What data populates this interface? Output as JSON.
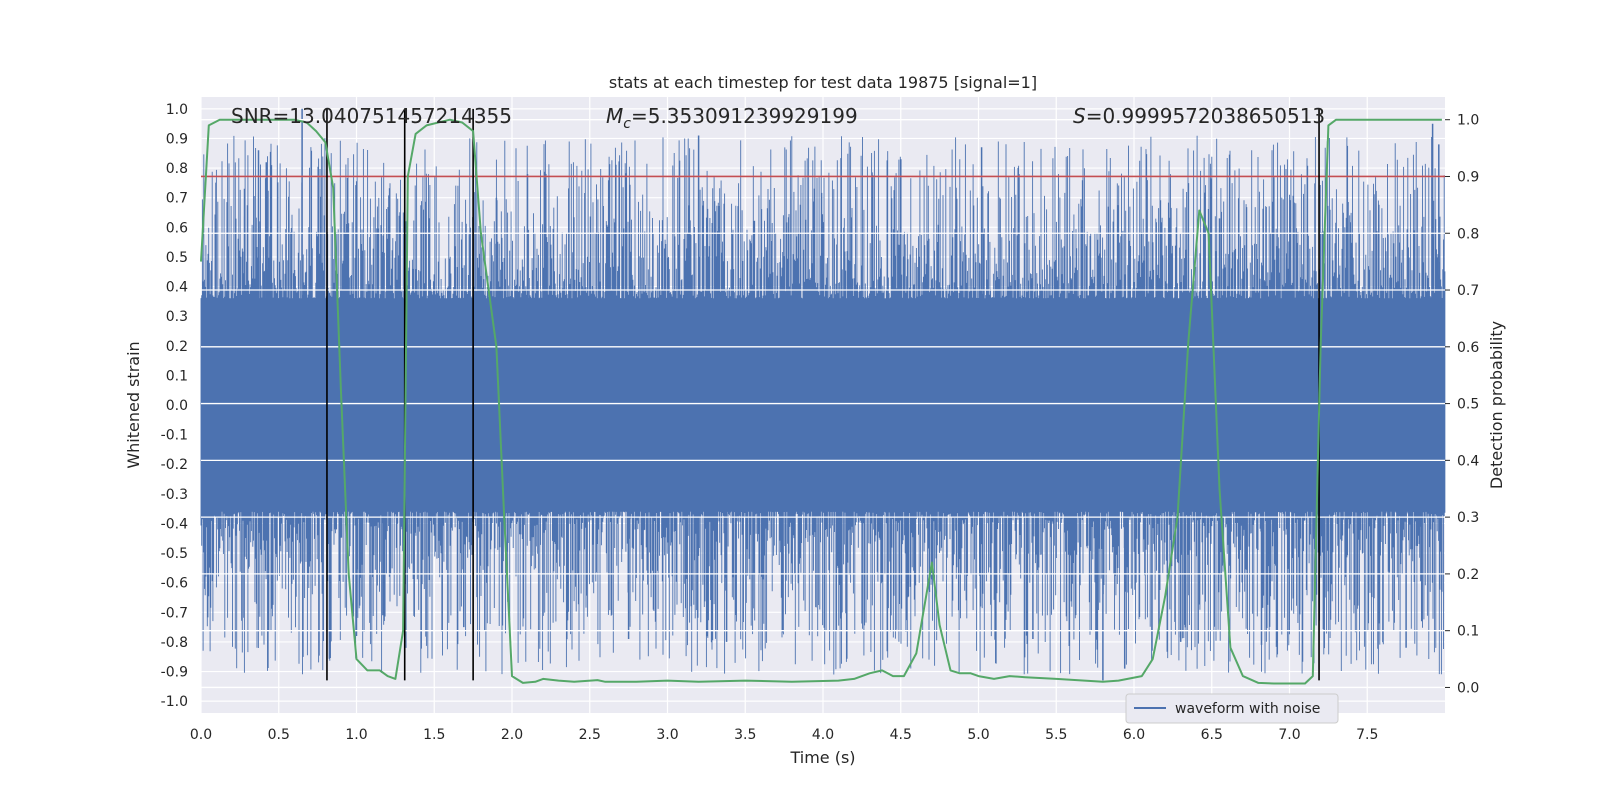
{
  "chart_data": {
    "type": "line",
    "title": "stats at each timestep for test data 19875 [signal=1]",
    "xlabel": "Time (s)",
    "ylabel_left": "Whitened strain",
    "ylabel_right": "Detection probability",
    "xlim": [
      0.0,
      8.0
    ],
    "ylim_left": [
      -1.04,
      1.04
    ],
    "ylim_right": [
      -0.045,
      1.04
    ],
    "x_ticks": [
      "0.0",
      "0.5",
      "1.0",
      "1.5",
      "2.0",
      "2.5",
      "3.0",
      "3.5",
      "4.0",
      "4.5",
      "5.0",
      "5.5",
      "6.0",
      "6.5",
      "7.0",
      "7.5"
    ],
    "y_left_ticks": [
      "1.0",
      "0.9",
      "0.8",
      "0.7",
      "0.6",
      "0.5",
      "0.4",
      "0.3",
      "0.2",
      "0.1",
      "0.0",
      "-0.1",
      "-0.2",
      "-0.3",
      "-0.4",
      "-0.5",
      "-0.6",
      "-0.7",
      "-0.8",
      "-0.9",
      "-1.0"
    ],
    "y_right_ticks": [
      "1.0",
      "0.9",
      "0.8",
      "0.7",
      "0.6",
      "0.5",
      "0.4",
      "0.3",
      "0.2",
      "0.1",
      "0.0"
    ],
    "annotations": {
      "snr": "SNR=13.040751457214355",
      "mc_symbol": "M",
      "mc_sub": "c",
      "mc_value": "=5.353091239929199",
      "s_symbol": "S",
      "s_value": "=0.9999572038650513"
    },
    "threshold": {
      "value": 0.9,
      "axis": "right",
      "color": "#c44e52"
    },
    "event_lines": [
      0.81,
      1.31,
      1.75,
      7.19
    ],
    "event_line_range": [
      -0.93,
      1.0
    ],
    "series": [
      {
        "name": "waveform with noise",
        "axis": "left",
        "color": "#4c72b0",
        "kind": "noise",
        "core_amplitude": 0.36,
        "envelope_p": [
          [
            0.0,
            0.0,
            0.6
          ],
          [
            8.0,
            0.0,
            0.6
          ]
        ],
        "spikes": [
          [
            0.28,
            0.73
          ],
          [
            0.37,
            0.86
          ],
          [
            0.42,
            0.82
          ],
          [
            0.65,
            1.0
          ],
          [
            0.87,
            -0.42
          ],
          [
            1.0,
            -0.78
          ],
          [
            1.17,
            -0.71
          ],
          [
            1.69,
            -0.75
          ],
          [
            1.9,
            0.7
          ],
          [
            2.1,
            0.78
          ],
          [
            2.75,
            -0.79
          ],
          [
            3.2,
            0.91
          ],
          [
            3.38,
            -0.8
          ],
          [
            4.5,
            0.83
          ],
          [
            5.02,
            0.87
          ],
          [
            5.35,
            -0.79
          ],
          [
            5.8,
            -0.93
          ],
          [
            5.94,
            -0.89
          ],
          [
            6.3,
            -0.8
          ],
          [
            6.55,
            0.63
          ],
          [
            6.82,
            -0.81
          ],
          [
            7.75,
            -0.82
          ],
          [
            7.85,
            -0.73
          ],
          [
            7.92,
            0.95
          ],
          [
            7.96,
            0.88
          ]
        ]
      },
      {
        "name": "Detection probability",
        "axis": "right",
        "color": "#55a868",
        "kind": "line",
        "points": [
          [
            0.0,
            0.75
          ],
          [
            0.05,
            0.99
          ],
          [
            0.12,
            1.0
          ],
          [
            0.3,
            1.0
          ],
          [
            0.6,
            1.0
          ],
          [
            0.68,
            0.995
          ],
          [
            0.74,
            0.98
          ],
          [
            0.8,
            0.96
          ],
          [
            0.85,
            0.88
          ],
          [
            0.9,
            0.52
          ],
          [
            0.95,
            0.2
          ],
          [
            1.0,
            0.05
          ],
          [
            1.07,
            0.03
          ],
          [
            1.15,
            0.03
          ],
          [
            1.2,
            0.02
          ],
          [
            1.25,
            0.015
          ],
          [
            1.3,
            0.1
          ],
          [
            1.33,
            0.9
          ],
          [
            1.38,
            0.975
          ],
          [
            1.45,
            0.99
          ],
          [
            1.6,
            1.0
          ],
          [
            1.68,
            0.995
          ],
          [
            1.75,
            0.98
          ],
          [
            1.8,
            0.8
          ],
          [
            1.9,
            0.6
          ],
          [
            1.95,
            0.3
          ],
          [
            2.0,
            0.02
          ],
          [
            2.07,
            0.008
          ],
          [
            2.15,
            0.01
          ],
          [
            2.2,
            0.015
          ],
          [
            2.3,
            0.012
          ],
          [
            2.4,
            0.01
          ],
          [
            2.55,
            0.013
          ],
          [
            2.6,
            0.01
          ],
          [
            2.8,
            0.01
          ],
          [
            3.0,
            0.012
          ],
          [
            3.2,
            0.01
          ],
          [
            3.5,
            0.012
          ],
          [
            3.8,
            0.01
          ],
          [
            4.1,
            0.012
          ],
          [
            4.2,
            0.015
          ],
          [
            4.3,
            0.025
          ],
          [
            4.38,
            0.03
          ],
          [
            4.45,
            0.02
          ],
          [
            4.52,
            0.02
          ],
          [
            4.6,
            0.06
          ],
          [
            4.7,
            0.22
          ],
          [
            4.75,
            0.11
          ],
          [
            4.82,
            0.03
          ],
          [
            4.88,
            0.025
          ],
          [
            4.95,
            0.025
          ],
          [
            5.0,
            0.02
          ],
          [
            5.1,
            0.015
          ],
          [
            5.2,
            0.02
          ],
          [
            5.3,
            0.018
          ],
          [
            5.5,
            0.015
          ],
          [
            5.8,
            0.01
          ],
          [
            5.9,
            0.012
          ],
          [
            6.05,
            0.02
          ],
          [
            6.12,
            0.05
          ],
          [
            6.2,
            0.16
          ],
          [
            6.28,
            0.3
          ],
          [
            6.35,
            0.61
          ],
          [
            6.42,
            0.84
          ],
          [
            6.48,
            0.8
          ],
          [
            6.55,
            0.35
          ],
          [
            6.62,
            0.07
          ],
          [
            6.7,
            0.02
          ],
          [
            6.8,
            0.008
          ],
          [
            6.9,
            0.007
          ],
          [
            7.1,
            0.007
          ],
          [
            7.15,
            0.02
          ],
          [
            7.2,
            0.6
          ],
          [
            7.25,
            0.99
          ],
          [
            7.3,
            1.0
          ],
          [
            7.98,
            1.0
          ]
        ]
      }
    ],
    "legend": {
      "position": "lower-right",
      "entries": [
        "waveform with noise"
      ]
    }
  }
}
